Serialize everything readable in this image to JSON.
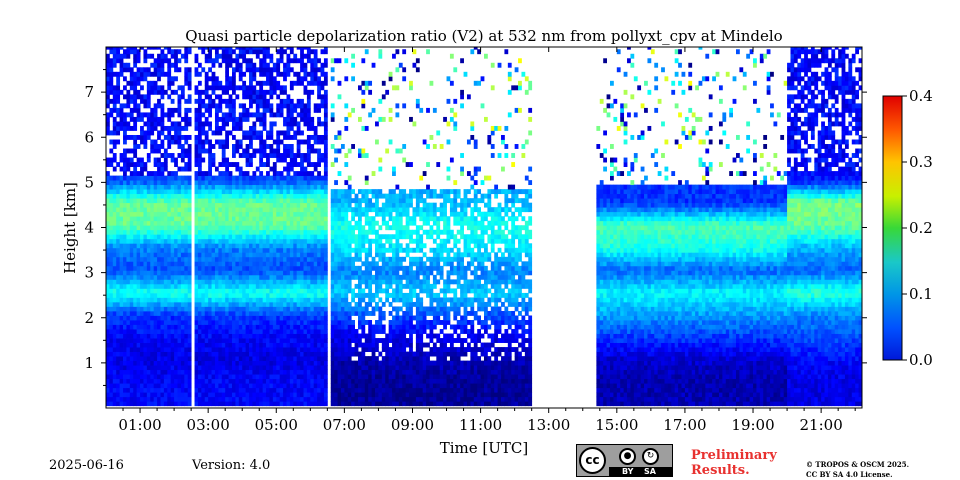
{
  "chart_data": {
    "type": "heatmap",
    "title": "Quasi particle depolarization ratio (V2) at 532 nm from pollyxt_cpv at Mindelo",
    "xlabel": "Time [UTC]",
    "ylabel": "Height [km]",
    "x_unit": "hours UTC",
    "xlim": [
      0.0,
      22.2
    ],
    "ylim": [
      0.0,
      8.0
    ],
    "x_tick_values": [
      1,
      3,
      5,
      7,
      9,
      11,
      13,
      15,
      17,
      19,
      21
    ],
    "x_tick_labels": [
      "01:00",
      "03:00",
      "05:00",
      "07:00",
      "09:00",
      "11:00",
      "13:00",
      "15:00",
      "17:00",
      "19:00",
      "21:00"
    ],
    "y_tick_values": [
      1,
      2,
      3,
      4,
      5,
      6,
      7
    ],
    "y_tick_labels": [
      "1",
      "2",
      "3",
      "4",
      "5",
      "6",
      "7"
    ],
    "colorbar": {
      "min": 0.0,
      "max": 0.4,
      "tick_values": [
        0.0,
        0.1,
        0.2,
        0.3,
        0.4
      ],
      "tick_labels": [
        "0.0",
        "0.1",
        "0.2",
        "0.3",
        "0.4"
      ],
      "colormap": "jet"
    },
    "data_gaps_hours": [
      [
        2.48,
        2.65
      ],
      [
        6.48,
        6.62
      ],
      [
        12.45,
        14.42
      ]
    ],
    "profiles": [
      {
        "time": "00:00-06:30",
        "height_km": [
          0.5,
          1.0,
          1.5,
          2.0,
          2.5,
          3.0,
          3.5,
          4.0,
          4.5,
          5.0,
          6.0,
          7.0
        ],
        "depol": [
          0.05,
          0.04,
          0.05,
          0.07,
          0.16,
          0.08,
          0.1,
          0.19,
          0.19,
          0.08,
          0.02,
          0.02
        ]
      },
      {
        "time": "06:30-12:30",
        "height_km": [
          0.5,
          1.0,
          1.5,
          2.0,
          2.5,
          3.0,
          3.5,
          4.0,
          4.5
        ],
        "depol": [
          0.01,
          0.02,
          0.04,
          0.08,
          0.13,
          0.1,
          0.14,
          0.16,
          0.12
        ]
      },
      {
        "time": "14:30-20:00",
        "height_km": [
          0.5,
          1.0,
          1.5,
          2.0,
          2.5,
          3.0,
          3.5,
          4.0,
          4.5
        ],
        "depol": [
          0.02,
          0.03,
          0.07,
          0.11,
          0.15,
          0.09,
          0.16,
          0.18,
          0.07
        ]
      },
      {
        "time": "20:00-22:00",
        "height_km": [
          0.5,
          1.0,
          1.5,
          2.0,
          2.5,
          3.0,
          3.5,
          4.0,
          4.5,
          5.0,
          6.0,
          7.0
        ],
        "depol": [
          0.04,
          0.05,
          0.08,
          0.1,
          0.17,
          0.09,
          0.12,
          0.19,
          0.2,
          0.06,
          0.02,
          0.02
        ]
      }
    ]
  },
  "footer": {
    "date": "2025-06-16",
    "version": "Version: 4.0",
    "license_by": "BY",
    "license_sa": "SA",
    "preliminary_line1": "Preliminary",
    "preliminary_line2": "Results.",
    "copyright_line1": "© TROPOS & OSCM 2025.",
    "copyright_line2": "CC BY SA 4.0 License."
  },
  "colors": {
    "prelim": "#e8312f",
    "colormap_low": "#0000cc",
    "colormap_high": "#cc0000"
  }
}
